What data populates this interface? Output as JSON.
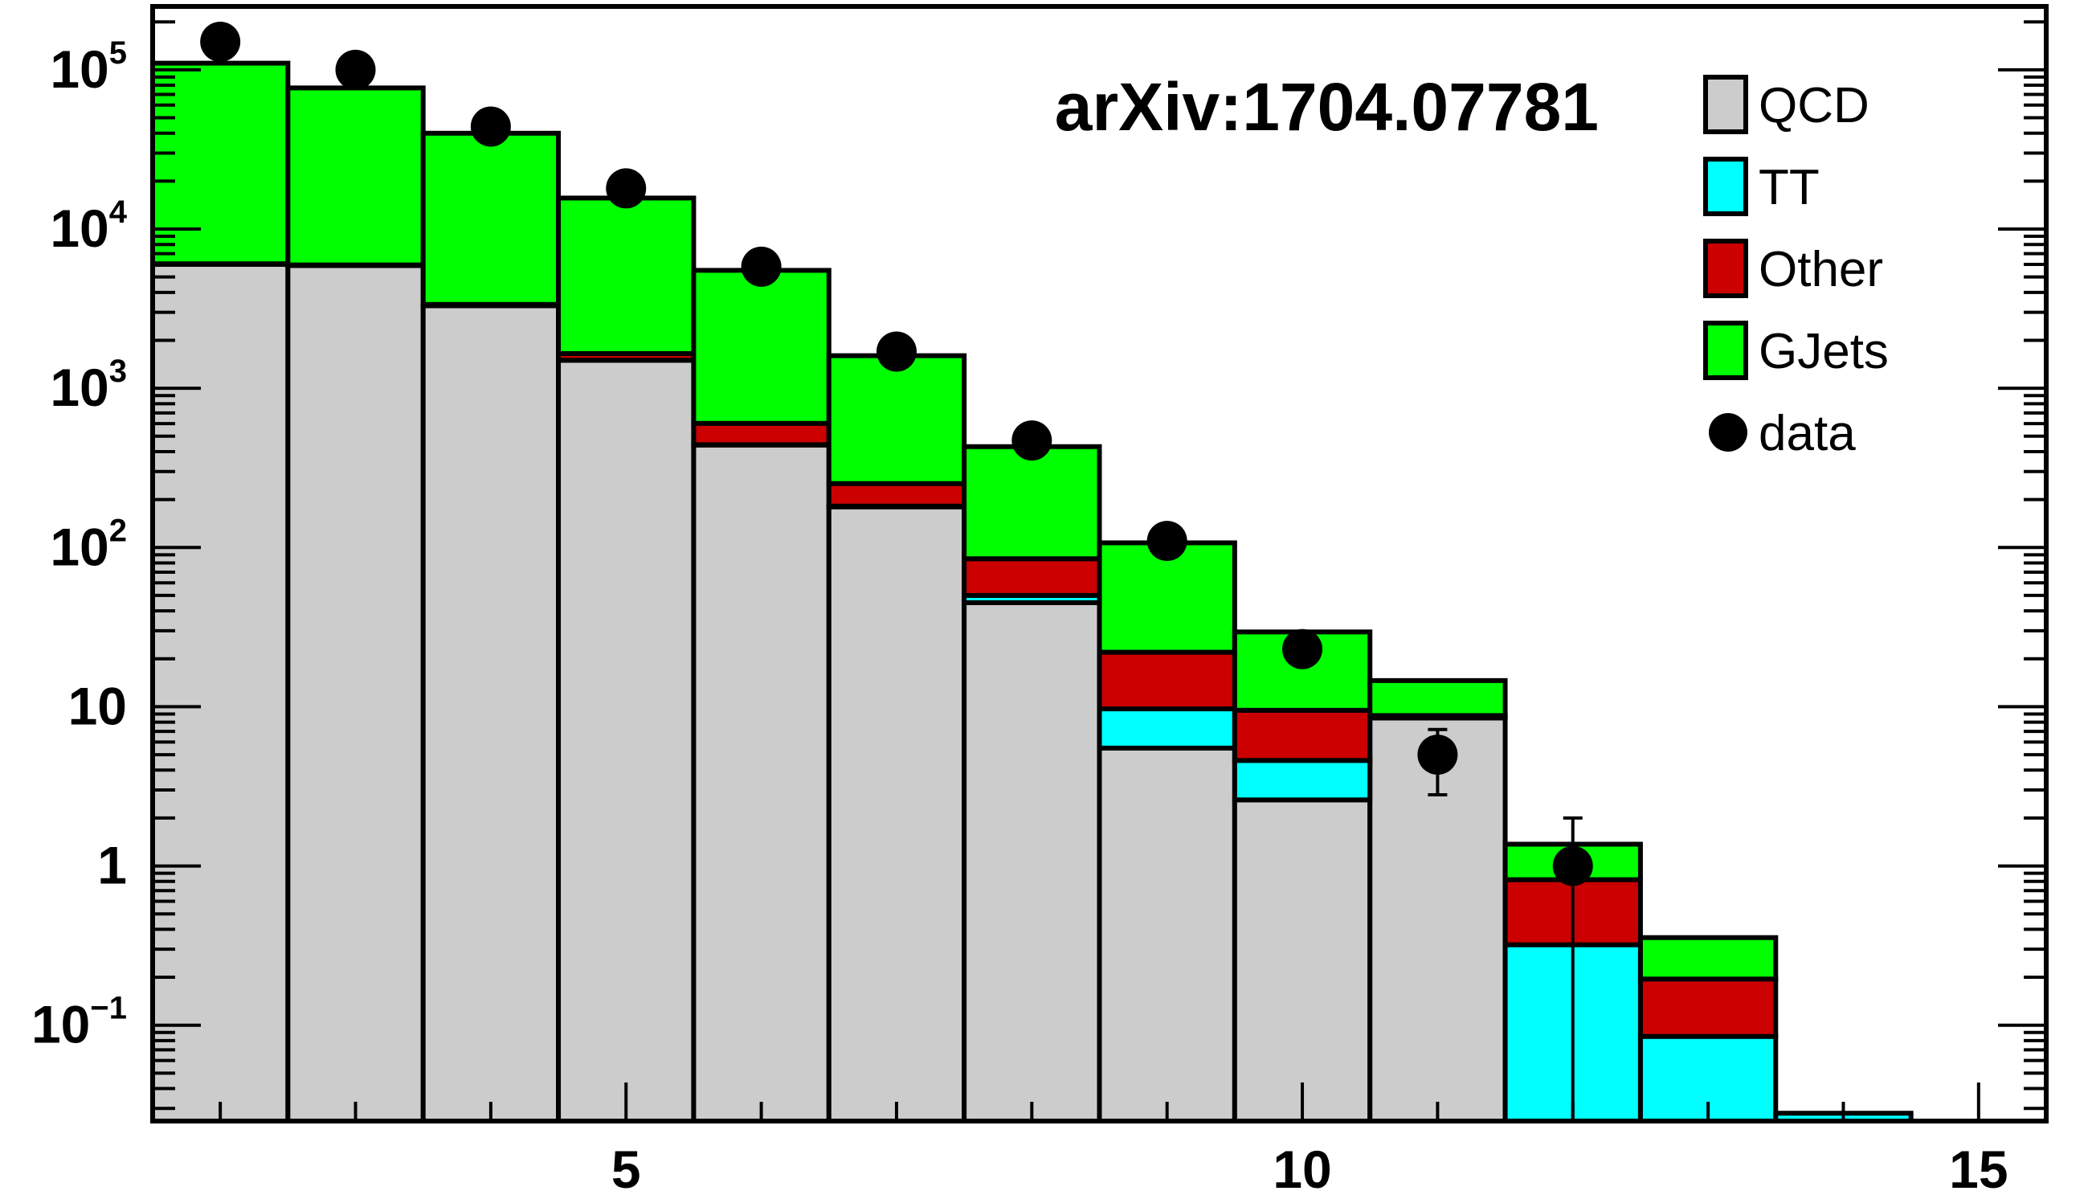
{
  "chart_data": {
    "type": "bar",
    "subtype": "stacked-histogram-log",
    "annotation": "arXiv:1704.07781",
    "xlabel": "",
    "ylabel": "",
    "x_ticks": [
      5,
      10,
      15
    ],
    "y_ticks": [
      {
        "base": "10",
        "exp": "5",
        "value": 100000
      },
      {
        "base": "10",
        "exp": "4",
        "value": 10000
      },
      {
        "base": "10",
        "exp": "3",
        "value": 1000
      },
      {
        "base": "10",
        "exp": "2",
        "value": 100
      },
      {
        "base": "10",
        "exp": "",
        "value": 10
      },
      {
        "base": "1",
        "exp": "",
        "value": 1
      },
      {
        "base": "10",
        "exp": "−1",
        "value": 0.1
      }
    ],
    "xlim": [
      1.5,
      15.5
    ],
    "ylim": [
      0.025,
      250000
    ],
    "log_y": true,
    "legend_position": "top-right",
    "bins": [
      2,
      3,
      4,
      5,
      6,
      7,
      8,
      9,
      10,
      11,
      12,
      13,
      14,
      15
    ],
    "series": [
      {
        "name": "QCD",
        "color": "#cccccc",
        "values": [
          6000,
          5900,
          3300,
          1500,
          440,
          180,
          45,
          5.5,
          2.6,
          8.5,
          0,
          0,
          0,
          0
        ]
      },
      {
        "name": "TT",
        "color": "#00ffff",
        "values": [
          1,
          1,
          1,
          1,
          2,
          2,
          5,
          4.2,
          2.0,
          0.2,
          0.32,
          0.085,
          0.028,
          0
        ]
      },
      {
        "name": "Other",
        "color": "#cc0000",
        "values": [
          50,
          50,
          60,
          150,
          160,
          70,
          35,
          12.3,
          4.9,
          0.1,
          0.5,
          0.11,
          0,
          0
        ]
      },
      {
        "name": "GJets",
        "color": "#00ff00",
        "values": [
          104000,
          71000,
          36600,
          14000,
          4900,
          1350,
          345,
          85,
          20,
          5.8,
          0.55,
          0.16,
          0,
          0
        ]
      }
    ],
    "data_points": {
      "name": "data",
      "x": [
        2,
        3,
        4,
        5,
        6,
        7,
        8,
        9,
        10,
        11,
        12
      ],
      "y": [
        150000,
        100000,
        44000,
        18000,
        5800,
        1700,
        470,
        110,
        23,
        5,
        1
      ],
      "err_low": [
        0,
        0,
        0,
        0,
        0,
        0,
        0,
        0,
        0,
        2.2,
        1.0
      ],
      "err_high": [
        0,
        0,
        0,
        0,
        0,
        0,
        0,
        0,
        0,
        2.2,
        1.0
      ]
    },
    "legend": [
      {
        "label": "QCD",
        "color": "#cccccc",
        "marker": "box"
      },
      {
        "label": "TT",
        "color": "#00ffff",
        "marker": "box"
      },
      {
        "label": "Other",
        "color": "#cc0000",
        "marker": "box"
      },
      {
        "label": "GJets",
        "color": "#00ff00",
        "marker": "box"
      },
      {
        "label": "data",
        "color": "#000000",
        "marker": "dot"
      }
    ]
  }
}
